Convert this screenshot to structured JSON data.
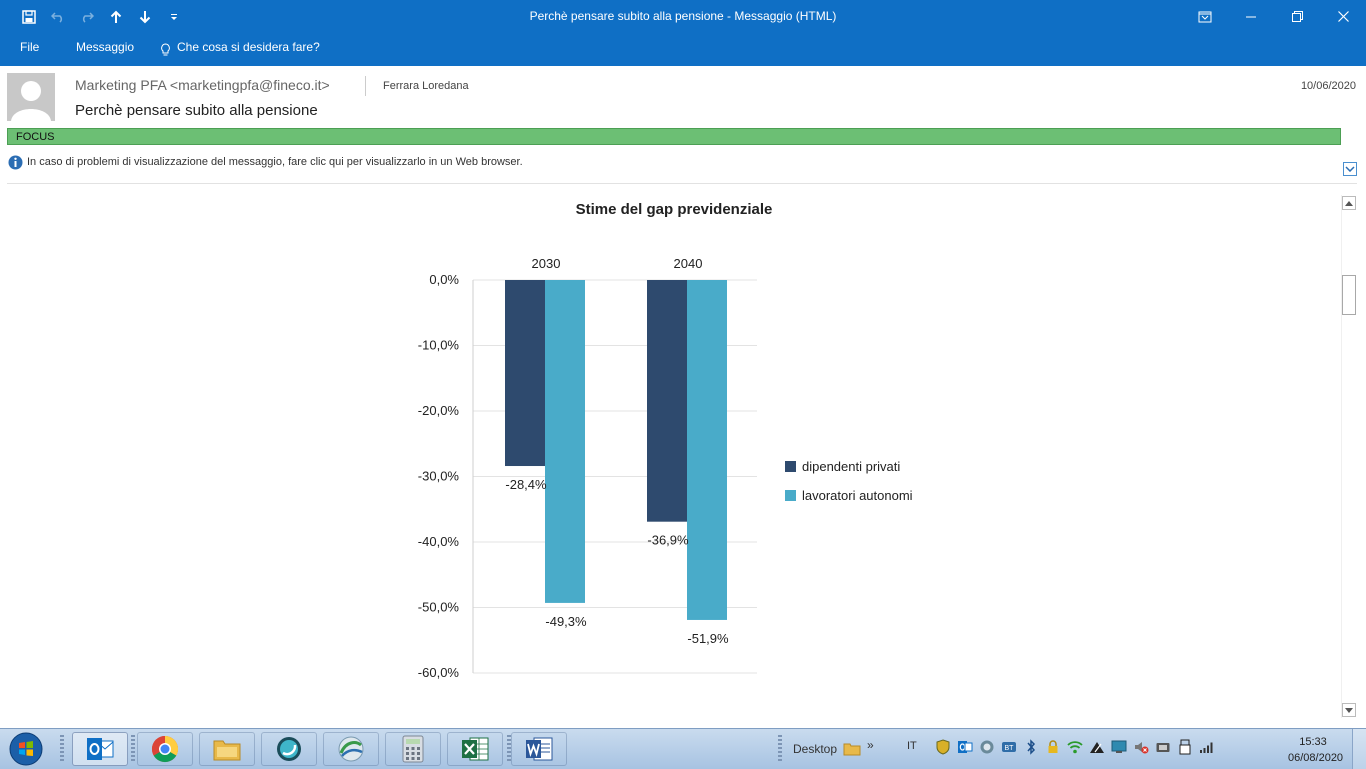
{
  "window": {
    "title": "Perchè pensare subito alla pensione - Messaggio (HTML)"
  },
  "ribbon": {
    "tabs": [
      "File",
      "Messaggio"
    ],
    "tell_me": "Che cosa si desidera fare?"
  },
  "message": {
    "sender": "Marketing PFA <marketingpfa@fineco.it>",
    "to": "Ferrara Loredana",
    "date": "10/06/2020",
    "subject": "Perchè pensare subito alla pensione",
    "category": "FOCUS",
    "info_text": "In caso di problemi di visualizzazione del messaggio, fare clic qui per visualizzarlo in un Web browser."
  },
  "chart_data": {
    "type": "bar",
    "title": "Stime del gap previdenziale",
    "categories": [
      "2030",
      "2040"
    ],
    "series": [
      {
        "name": "dipendenti privati",
        "values": [
          -28.4,
          -36.9
        ],
        "labels": [
          "-28,4%",
          "-36,9%"
        ],
        "color": "#2e4a6e"
      },
      {
        "name": "lavoratori autonomi",
        "values": [
          -49.3,
          -51.9
        ],
        "labels": [
          "-49,3%",
          "-51,9%"
        ],
        "color": "#49abc9"
      }
    ],
    "ylim": [
      -60,
      0
    ],
    "yticks": [
      0,
      -10,
      -20,
      -30,
      -40,
      -50,
      -60
    ],
    "ytick_labels": [
      "0,0%",
      "-10,0%",
      "-20,0%",
      "-30,0%",
      "-40,0%",
      "-50,0%",
      "-60,0%"
    ],
    "category_axis_position": "top",
    "grid": true,
    "legend_position": "right"
  },
  "taskbar": {
    "desktop_label": "Desktop",
    "language": "IT",
    "time": "15:33",
    "date": "06/08/2020",
    "apps": [
      "outlook-icon",
      "chrome-icon",
      "file-explorer-icon",
      "app-icon",
      "network-app-icon",
      "calculator-icon",
      "excel-icon",
      "word-icon"
    ]
  }
}
